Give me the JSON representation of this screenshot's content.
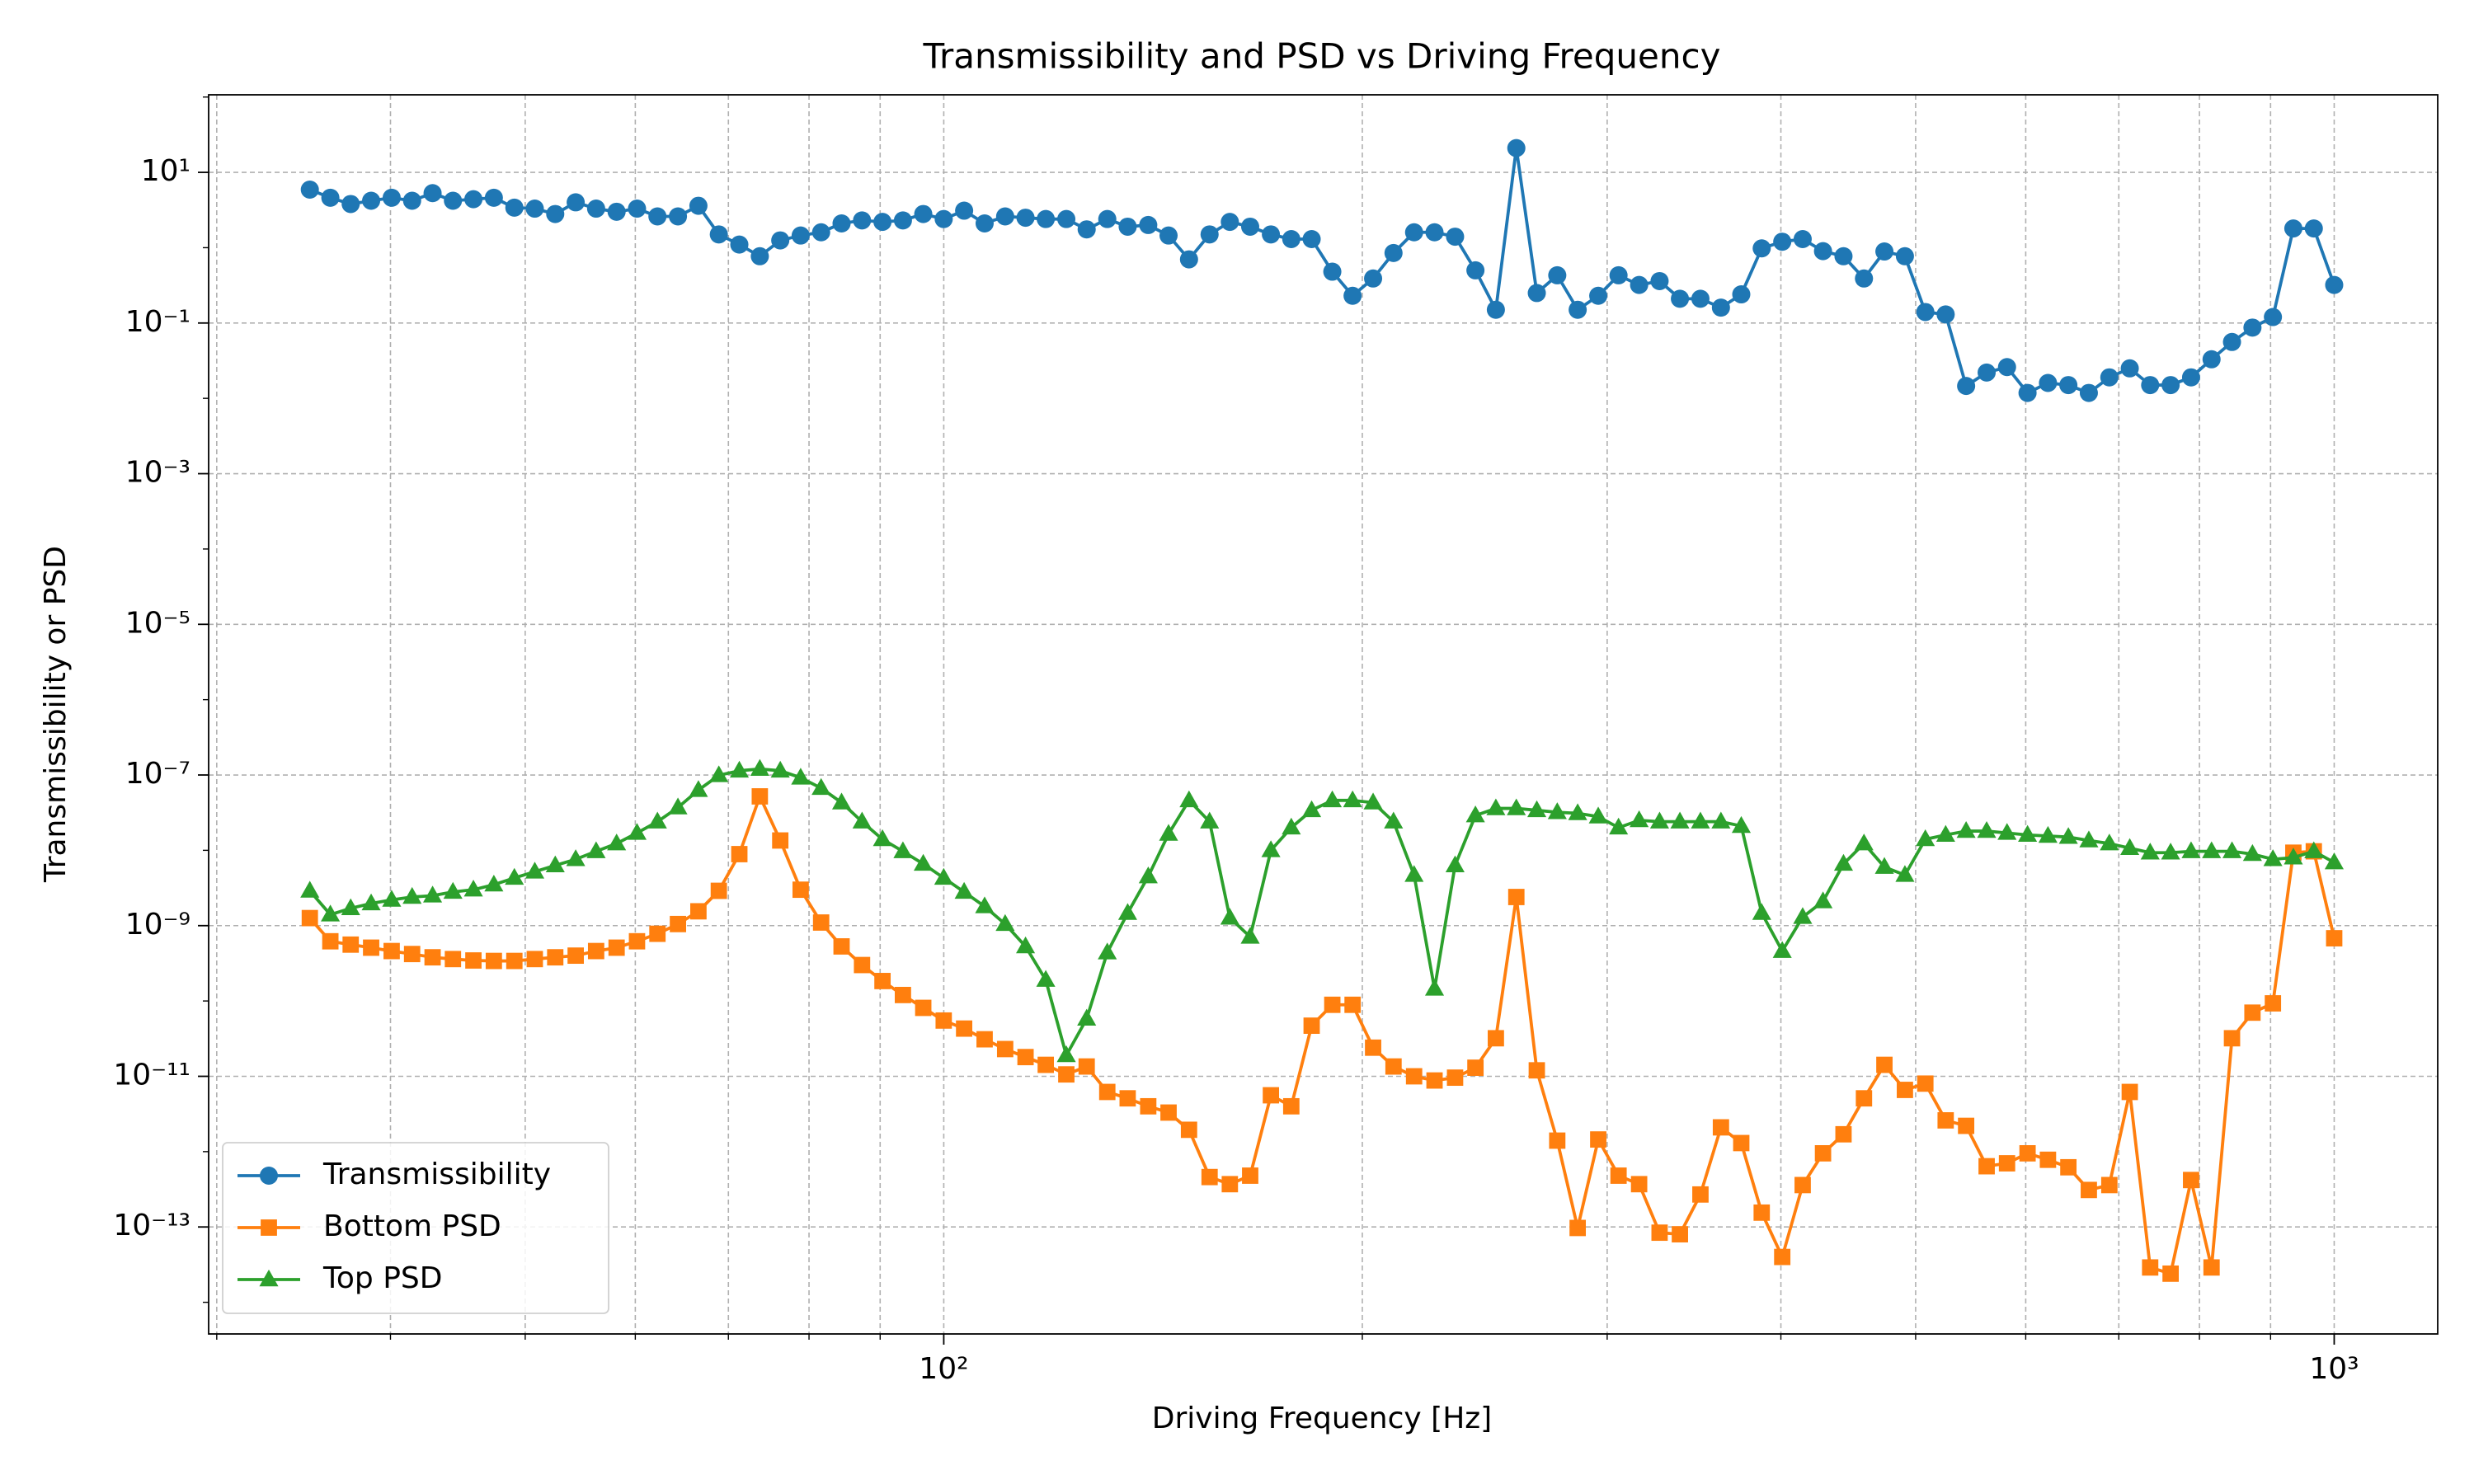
{
  "chart_data": {
    "type": "line",
    "title": "Transmissibility and PSD vs Driving Frequency",
    "xlabel": "Driving Frequency [Hz]",
    "ylabel": "Transmissibility or PSD",
    "xscale": "log",
    "yscale": "log",
    "grid": true,
    "legend": "lower left",
    "xlim": [
      29.6,
      1187
    ],
    "ylim": [
      3.8e-15,
      107
    ],
    "xticks": [
      {
        "value": 100,
        "label": "10²"
      },
      {
        "value": 1000,
        "label": "10³"
      }
    ],
    "xminor_ticks": [
      30,
      40,
      50,
      60,
      70,
      80,
      90,
      200,
      300,
      400,
      500,
      600,
      700,
      800,
      900
    ],
    "yticks": [
      {
        "value": 10,
        "label": "10¹"
      },
      {
        "value": 0.1,
        "label": "10⁻¹"
      },
      {
        "value": 0.001,
        "label": "10⁻³"
      },
      {
        "value": 1e-05,
        "label": "10⁻⁵"
      },
      {
        "value": 1e-07,
        "label": "10⁻⁷"
      },
      {
        "value": 1e-09,
        "label": "10⁻⁹"
      },
      {
        "value": 1e-11,
        "label": "10⁻¹¹"
      },
      {
        "value": 1e-13,
        "label": "10⁻¹³"
      }
    ],
    "yminor_ticks": [
      100,
      1,
      0.01,
      0.0001,
      1e-06,
      1e-08,
      1e-10,
      1e-12,
      1e-14
    ],
    "x": [
      35.0,
      36.21,
      37.45,
      38.74,
      40.08,
      41.46,
      42.89,
      44.36,
      45.89,
      47.47,
      49.11,
      50.8,
      52.55,
      54.36,
      56.23,
      58.17,
      60.17,
      62.24,
      64.39,
      66.61,
      68.9,
      71.28,
      73.74,
      76.28,
      78.9,
      81.62,
      84.43,
      87.34,
      90.35,
      93.46,
      96.66,
      99.99,
      103.43,
      107.0,
      110.7,
      114.5,
      118.4,
      122.5,
      126.7,
      131.1,
      135.6,
      140.3,
      145.1,
      150.1,
      155.3,
      160.6,
      166.1,
      171.9,
      177.8,
      183.9,
      190.3,
      196.8,
      203.6,
      210.6,
      217.9,
      225.4,
      233.2,
      241.2,
      249.5,
      258.1,
      267.0,
      276.2,
      285.7,
      295.6,
      305.7,
      316.3,
      327.2,
      338.4,
      350.1,
      362.2,
      374.6,
      387.5,
      400.9,
      414.7,
      428.9,
      443.7,
      459.0,
      474.8,
      491.2,
      508.1,
      525.5,
      543.6,
      562.4,
      581.7,
      601.8,
      622.5,
      643.9,
      666.1,
      689.1,
      712.8,
      737.3,
      762.7,
      789.0,
      816.2,
      844.3,
      873.4,
      903.5,
      934.6,
      966.8,
      1000
    ],
    "series": [
      {
        "name": "Transmissibility",
        "color": "#1f77b4",
        "marker": "circle",
        "values": [
          5.9,
          4.6,
          3.8,
          4.2,
          4.6,
          4.2,
          5.3,
          4.2,
          4.4,
          4.6,
          3.4,
          3.3,
          2.8,
          4.0,
          3.3,
          3.0,
          3.3,
          2.6,
          2.6,
          3.6,
          1.5,
          1.1,
          0.77,
          1.25,
          1.45,
          1.6,
          2.1,
          2.3,
          2.2,
          2.3,
          2.8,
          2.4,
          3.1,
          2.1,
          2.6,
          2.5,
          2.4,
          2.4,
          1.75,
          2.4,
          1.9,
          2.0,
          1.45,
          0.7,
          1.5,
          2.2,
          1.9,
          1.5,
          1.3,
          1.3,
          0.48,
          0.23,
          0.39,
          0.85,
          1.6,
          1.6,
          1.4,
          0.5,
          0.15,
          21,
          0.25,
          0.43,
          0.15,
          0.23,
          0.43,
          0.32,
          0.36,
          0.21,
          0.21,
          0.16,
          0.24,
          0.98,
          1.2,
          1.3,
          0.9,
          0.77,
          0.39,
          0.89,
          0.77,
          0.14,
          0.13,
          0.0146,
          0.022,
          0.026,
          0.0118,
          0.016,
          0.015,
          0.0118,
          0.019,
          0.025,
          0.015,
          0.015,
          0.019,
          0.033,
          0.056,
          0.087,
          0.12,
          1.8,
          1.8,
          0.32
        ]
      },
      {
        "name": "Bottom PSD",
        "color": "#ff7f0e",
        "marker": "square",
        "values": [
          1.26e-09,
          6.2e-10,
          5.6e-10,
          5.1e-10,
          4.6e-10,
          4.2e-10,
          3.8e-10,
          3.6e-10,
          3.45e-10,
          3.4e-10,
          3.4e-10,
          3.6e-10,
          3.8e-10,
          4e-10,
          4.6e-10,
          5.1e-10,
          6.2e-10,
          7.8e-10,
          1.05e-09,
          1.55e-09,
          2.9e-09,
          8.9e-09,
          5.2e-08,
          1.35e-08,
          3e-09,
          1.1e-09,
          5.3e-10,
          3e-10,
          1.84e-10,
          1.2e-10,
          8.1e-11,
          5.5e-11,
          4.3e-11,
          3.1e-11,
          2.3e-11,
          1.8e-11,
          1.42e-11,
          1.06e-11,
          1.35e-11,
          6.2e-12,
          5.1e-12,
          4e-12,
          3.3e-12,
          1.95e-12,
          4.6e-13,
          3.7e-13,
          4.8e-13,
          5.6e-12,
          4e-12,
          4.7e-11,
          8.9e-11,
          8.9e-11,
          2.4e-11,
          1.35e-11,
          1e-11,
          8.8e-12,
          9.6e-12,
          1.3e-11,
          3.2e-11,
          2.4e-09,
          1.2e-11,
          1.4e-12,
          9.7e-14,
          1.45e-12,
          4.8e-13,
          3.7e-13,
          8.4e-14,
          8e-14,
          2.7e-13,
          2.1e-12,
          1.3e-12,
          1.55e-13,
          4e-14,
          3.6e-13,
          9.5e-13,
          1.7e-12,
          5.1e-12,
          1.42e-11,
          6.6e-12,
          8e-12,
          2.6e-12,
          2.2e-12,
          6.4e-13,
          7e-13,
          9.5e-13,
          7.8e-13,
          6.2e-13,
          3.1e-13,
          3.6e-13,
          6.2e-12,
          2.9e-14,
          2.4e-14,
          4.2e-13,
          2.9e-14,
          3.2e-11,
          7e-11,
          9.3e-11,
          9.3e-09,
          9.7e-09,
          6.8e-10
        ]
      },
      {
        "name": "Top PSD",
        "color": "#2ca02c",
        "marker": "triangle",
        "values": [
          2.9e-09,
          1.4e-09,
          1.7e-09,
          1.97e-09,
          2.2e-09,
          2.4e-09,
          2.5e-09,
          2.8e-09,
          3e-09,
          3.5e-09,
          4.3e-09,
          5.2e-09,
          6.3e-09,
          7.6e-09,
          9.7e-09,
          1.23e-08,
          1.7e-08,
          2.4e-08,
          3.7e-08,
          6.3e-08,
          9.9e-08,
          1.14e-07,
          1.2e-07,
          1.14e-07,
          9.2e-08,
          6.7e-08,
          4.3e-08,
          2.4e-08,
          1.4e-08,
          9.7e-09,
          6.6e-09,
          4.3e-09,
          2.8e-09,
          1.8e-09,
          1.05e-09,
          5.3e-10,
          1.9e-10,
          1.9e-11,
          5.8e-11,
          4.4e-10,
          1.47e-09,
          4.5e-09,
          1.65e-08,
          4.6e-08,
          2.4e-08,
          1.27e-09,
          7.1e-10,
          1e-08,
          2e-08,
          3.4e-08,
          4.6e-08,
          4.6e-08,
          4.3e-08,
          2.4e-08,
          4.7e-09,
          1.45e-10,
          6.3e-09,
          2.9e-08,
          3.6e-08,
          3.6e-08,
          3.4e-08,
          3.2e-08,
          3.1e-08,
          2.8e-08,
          2e-08,
          2.5e-08,
          2.4e-08,
          2.4e-08,
          2.4e-08,
          2.4e-08,
          2.1e-08,
          1.47e-09,
          4.6e-10,
          1.3e-09,
          2.1e-09,
          6.6e-09,
          1.23e-08,
          6e-09,
          4.7e-09,
          1.4e-08,
          1.6e-08,
          1.8e-08,
          1.8e-08,
          1.7e-08,
          1.6e-08,
          1.55e-08,
          1.5e-08,
          1.35e-08,
          1.23e-08,
          1.07e-08,
          9.3e-09,
          9.3e-09,
          9.7e-09,
          9.7e-09,
          9.7e-09,
          8.9e-09,
          7.6e-09,
          8e-09,
          9.7e-09,
          6.9e-09
        ]
      }
    ]
  }
}
